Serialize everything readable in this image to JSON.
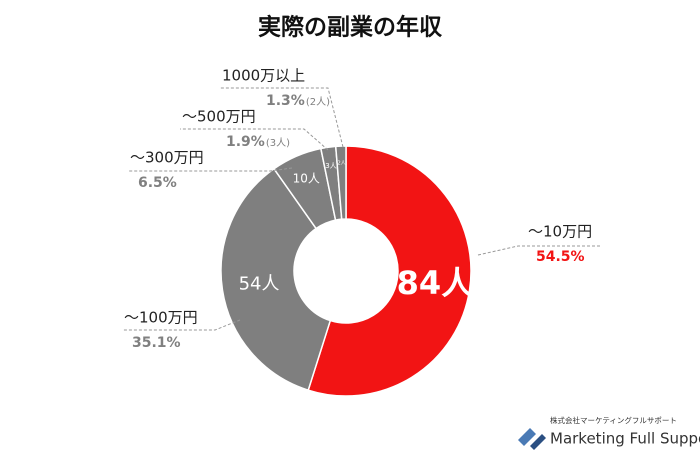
{
  "chart_data": {
    "type": "donut",
    "title": "実際の副業の年収",
    "categories": [
      "～10万円",
      "～100万円",
      "～300万円",
      "～500万円",
      "1000万以上"
    ],
    "values": [
      54.5,
      35.1,
      6.5,
      1.9,
      1.3
    ],
    "value_labels": [
      "54.5%",
      "35.1%",
      "6.5%",
      "1.9%",
      "1.3%"
    ],
    "counts": [
      84,
      54,
      10,
      3,
      2
    ],
    "count_labels": [
      "84人",
      "54人",
      "10人",
      "3人",
      "2人"
    ],
    "extra_count_labels": [
      "(3人)",
      "(2人)"
    ],
    "colors": [
      "#f21414",
      "#7f7f7f",
      "#7f7f7f",
      "#7f7f7f",
      "#7f7f7f"
    ],
    "label_colors": [
      "#f21414",
      "#808080",
      "#808080",
      "#808080",
      "#808080"
    ]
  },
  "footer": {
    "company": "株式会社マーケティングフルサポート",
    "brand": "Marketing Full Support"
  }
}
